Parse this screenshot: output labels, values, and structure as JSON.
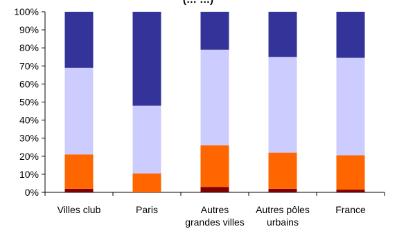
{
  "chart_data": {
    "type": "bar",
    "stacked": true,
    "percent": true,
    "title": "(… …)",
    "categories": [
      [
        "Villes club"
      ],
      [
        "Paris"
      ],
      [
        "Autres",
        "grandes villes"
      ],
      [
        "Autres pôles",
        "urbains"
      ],
      [
        "France"
      ]
    ],
    "y_ticks": [
      "0%",
      "10%",
      "20%",
      "30%",
      "40%",
      "50%",
      "60%",
      "70%",
      "80%",
      "90%",
      "100%"
    ],
    "ylim": [
      0,
      100
    ],
    "grid": false,
    "legend": "none",
    "series": [
      {
        "values": [
          2,
          0,
          3,
          2,
          1.5
        ],
        "color": "#800000"
      },
      {
        "values": [
          19,
          10.5,
          23,
          20,
          19
        ],
        "color": "#ff6600"
      },
      {
        "values": [
          48,
          37.5,
          53,
          53,
          54
        ],
        "color": "#ccccff"
      },
      {
        "values": [
          31,
          52,
          21,
          25,
          25.5
        ],
        "color": "#333399"
      }
    ]
  }
}
